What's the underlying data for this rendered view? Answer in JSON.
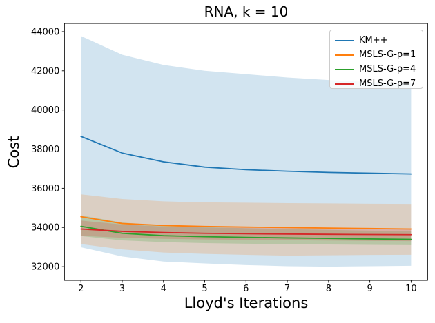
{
  "figure_title": "RNA, k = 10",
  "chart_data": {
    "type": "line",
    "title": "RNA, k = 10",
    "xlabel": "Lloyd's Iterations",
    "ylabel": "Cost",
    "x": [
      2,
      3,
      4,
      5,
      6,
      7,
      8,
      9,
      10
    ],
    "xticks": [
      2,
      3,
      4,
      5,
      6,
      7,
      8,
      9,
      10
    ],
    "yticks": [
      32000,
      34000,
      36000,
      38000,
      40000,
      42000,
      44000
    ],
    "xlim": [
      1.6,
      10.4
    ],
    "ylim": [
      31300,
      44420
    ],
    "grid": false,
    "legend_position": "upper right",
    "band_alpha": 0.2,
    "series": [
      {
        "name": "KM++",
        "color": "#1f77b4",
        "values": [
          38650,
          37800,
          37350,
          37080,
          36950,
          36870,
          36810,
          36770,
          36730
        ],
        "band_lower": [
          32990,
          32520,
          32260,
          32160,
          32080,
          32020,
          32000,
          32020,
          32045
        ],
        "band_upper": [
          43780,
          42820,
          42300,
          42000,
          41830,
          41660,
          41530,
          41430,
          41350
        ]
      },
      {
        "name": "MSLS-G-p=1",
        "color": "#ff7f0e",
        "values": [
          34550,
          34200,
          34100,
          34050,
          34020,
          33995,
          33970,
          33945,
          33920
        ],
        "band_lower": [
          33150,
          32880,
          32720,
          32650,
          32600,
          32560,
          32580,
          32595,
          32605
        ],
        "band_upper": [
          35690,
          35450,
          35330,
          35280,
          35260,
          35240,
          35225,
          35210,
          35200
        ]
      },
      {
        "name": "MSLS-G-p=4",
        "color": "#2ca02c",
        "values": [
          34060,
          33700,
          33580,
          33530,
          33495,
          33465,
          33440,
          33415,
          33390
        ],
        "band_lower": [
          33560,
          33340,
          33250,
          33200,
          33170,
          33150,
          33130,
          33110,
          33100
        ],
        "band_upper": [
          34620,
          34250,
          34100,
          34020,
          33960,
          33915,
          33875,
          33835,
          33800
        ]
      },
      {
        "name": "MSLS-G-p=7",
        "color": "#d62728",
        "values": [
          33920,
          33800,
          33740,
          33700,
          33678,
          33663,
          33650,
          33640,
          33630
        ],
        "band_lower": [
          33570,
          33470,
          33420,
          33390,
          33370,
          33350,
          33330,
          33315,
          33300
        ],
        "band_upper": [
          34350,
          34150,
          34050,
          34000,
          33980,
          33968,
          33960,
          33955,
          33950
        ]
      }
    ]
  }
}
